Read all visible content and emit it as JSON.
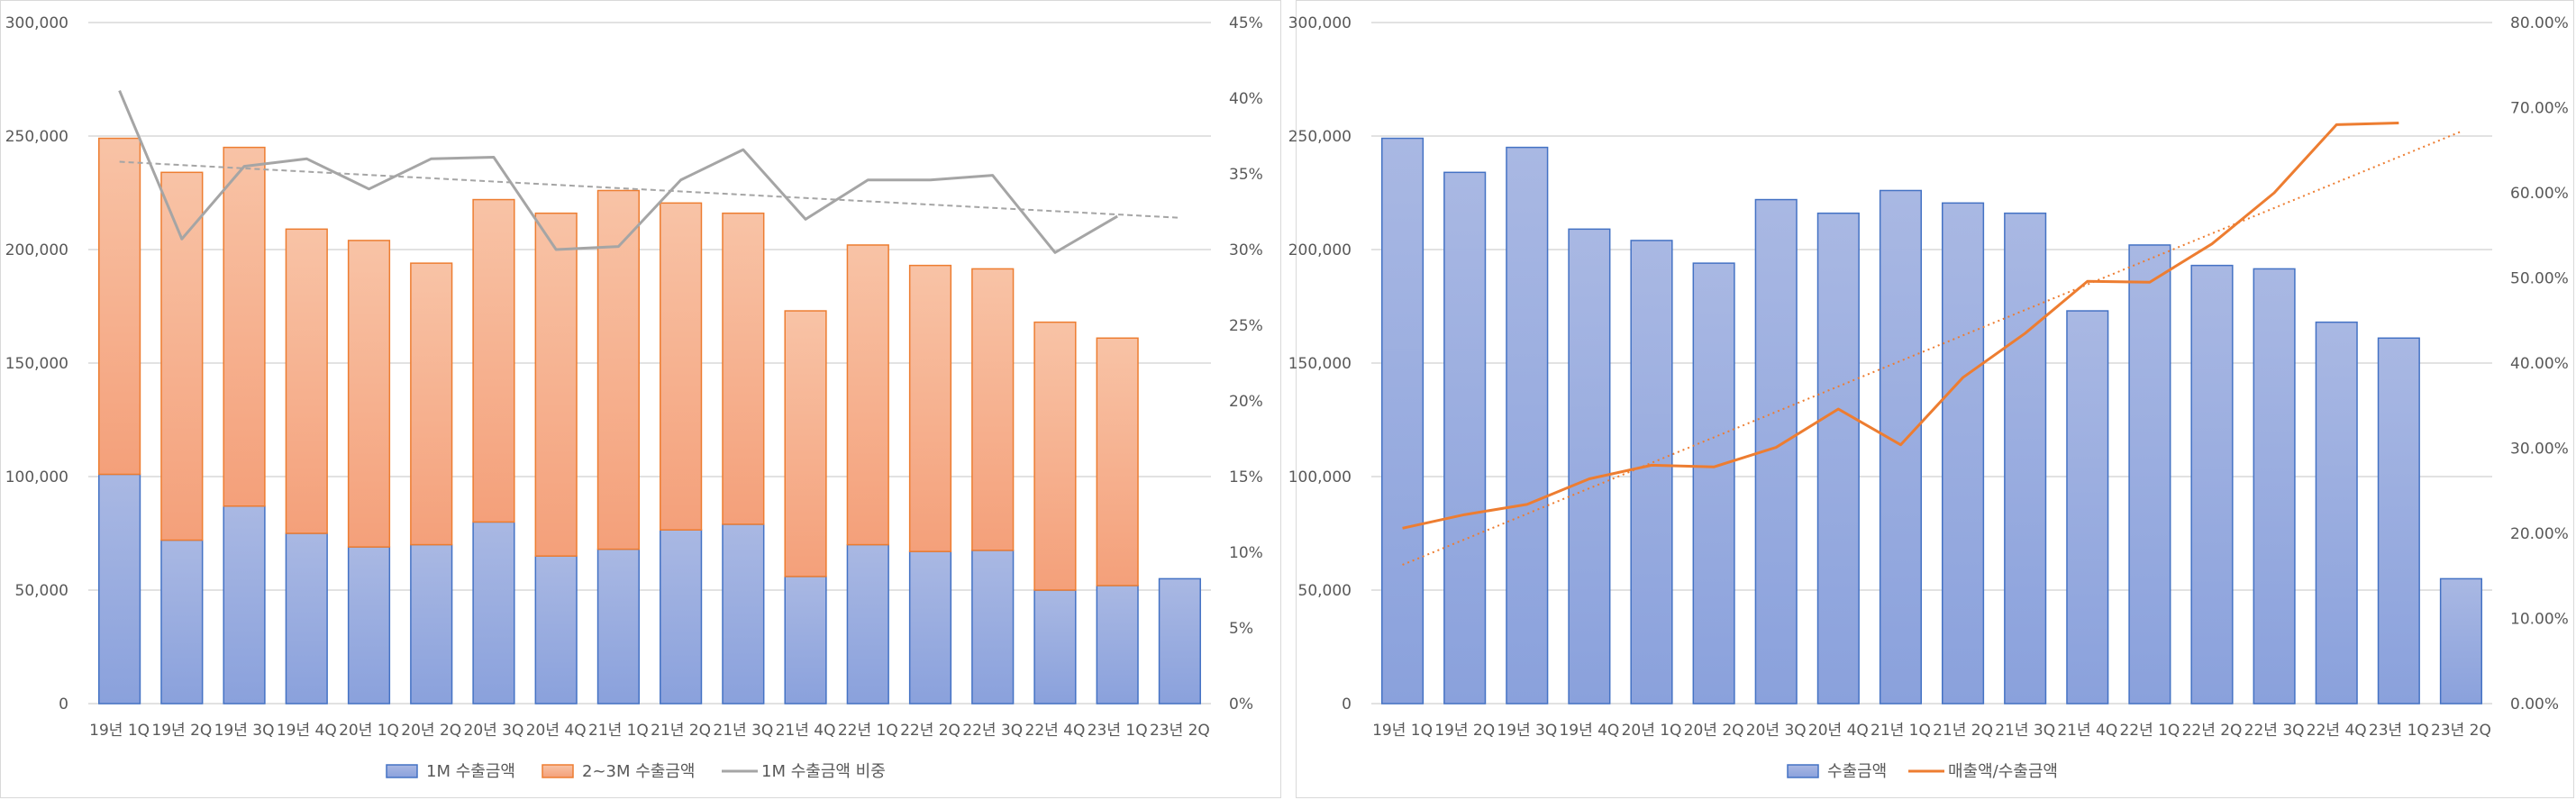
{
  "colors": {
    "m1_fill_top": "#a9b8e3",
    "m1_fill_bottom": "#8aa1dc",
    "m1_stroke": "#4472c4",
    "m23_fill_top": "#f8c3a6",
    "m23_fill_bottom": "#f4a07a",
    "m23_stroke": "#ed7d31",
    "ratio_line": "#a5a5a5",
    "sales_line": "#ed7d31",
    "grid": "#d9d9d9"
  },
  "chart_data": [
    {
      "type": "bar",
      "stacked": true,
      "categories": [
        "19년 1Q",
        "19년 2Q",
        "19년 3Q",
        "19년 4Q",
        "20년 1Q",
        "20년 2Q",
        "20년 3Q",
        "20년 4Q",
        "21년 1Q",
        "21년 2Q",
        "21년 3Q",
        "21년 4Q",
        "22년 1Q",
        "22년 2Q",
        "22년 3Q",
        "22년 4Q",
        "23년 1Q",
        "23년 2Q"
      ],
      "yTickLabels": [
        "0",
        "50,000",
        "100,000",
        "150,000",
        "200,000",
        "250,000",
        "300,000"
      ],
      "y2TickLabels": [
        "0%",
        "5%",
        "10%",
        "15%",
        "20%",
        "25%",
        "30%",
        "35%",
        "40%",
        "45%"
      ],
      "ylim": [
        0,
        300000
      ],
      "y2lim": [
        0,
        0.45
      ],
      "grid": true,
      "legend_position": "bottom",
      "series": [
        {
          "name": "1M 수출금액",
          "kind": "bar",
          "axis": "left",
          "values": [
            101000,
            72000,
            87000,
            75000,
            69000,
            70000,
            80000,
            65000,
            68000,
            76500,
            79000,
            56000,
            70000,
            67000,
            67500,
            50000,
            52000,
            55000
          ]
        },
        {
          "name": "2~3M 수출금액",
          "kind": "bar",
          "axis": "left",
          "values": [
            148000,
            162000,
            158000,
            134000,
            135000,
            124000,
            142000,
            151000,
            158000,
            144000,
            137000,
            117000,
            132000,
            126000,
            124000,
            118000,
            109000,
            null
          ]
        },
        {
          "name": "1M 수출금액 비중",
          "kind": "line",
          "axis": "right",
          "values": [
            0.405,
            0.307,
            0.355,
            0.36,
            0.34,
            0.36,
            0.361,
            0.3,
            0.302,
            0.346,
            0.366,
            0.32,
            0.346,
            0.346,
            0.349,
            0.298,
            0.322,
            null
          ]
        }
      ],
      "trendline": {
        "series": "1M 수출금액 비중",
        "start": 0.358,
        "end": 0.321
      }
    },
    {
      "type": "bar",
      "categories": [
        "19년 1Q",
        "19년 2Q",
        "19년 3Q",
        "19년 4Q",
        "20년 1Q",
        "20년 2Q",
        "20년 3Q",
        "20년 4Q",
        "21년 1Q",
        "21년 2Q",
        "21년 3Q",
        "21년 4Q",
        "22년 1Q",
        "22년 2Q",
        "22년 3Q",
        "22년 4Q",
        "23년 1Q",
        "23년 2Q"
      ],
      "yTickLabels": [
        "0",
        "50,000",
        "100,000",
        "150,000",
        "200,000",
        "250,000",
        "300,000"
      ],
      "y2TickLabels": [
        "0.00%",
        "10.00%",
        "20.00%",
        "30.00%",
        "40.00%",
        "50.00%",
        "60.00%",
        "70.00%",
        "80.00%"
      ],
      "ylim": [
        0,
        300000
      ],
      "y2lim": [
        0,
        0.8
      ],
      "grid": true,
      "legend_position": "bottom",
      "series": [
        {
          "name": "수출금액",
          "kind": "bar",
          "axis": "left",
          "values": [
            249000,
            234000,
            245000,
            209000,
            204000,
            194000,
            222000,
            216000,
            226000,
            220500,
            216000,
            173000,
            202000,
            193000,
            191500,
            168000,
            161000,
            55000
          ]
        },
        {
          "name": "매출액/수출금액",
          "kind": "line",
          "axis": "right",
          "values": [
            0.206,
            0.222,
            0.234,
            0.264,
            0.28,
            0.278,
            0.301,
            0.346,
            0.304,
            0.383,
            0.435,
            0.496,
            0.495,
            0.54,
            0.6,
            0.68,
            0.682,
            null
          ]
        }
      ],
      "trendline": {
        "series": "매출액/수출금액",
        "start": 0.163,
        "end": 0.672
      }
    }
  ]
}
